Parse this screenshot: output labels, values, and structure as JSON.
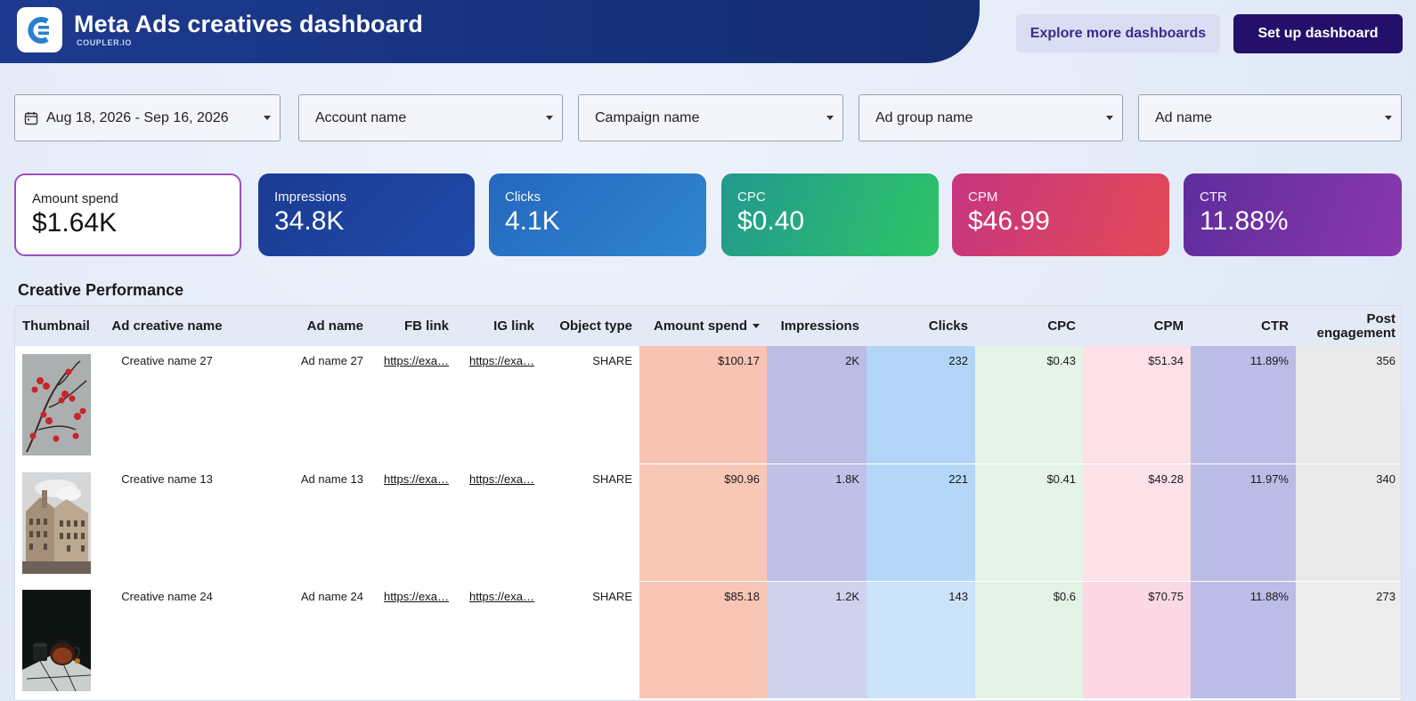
{
  "header": {
    "title": "Meta Ads creatives dashboard",
    "subtitle": "COUPLER.IO",
    "explore_label": "Explore more dashboards",
    "setup_label": "Set up dashboard",
    "brand_color": "#1d3a8f",
    "setup_button_color": "#24106a"
  },
  "filters": [
    {
      "label": "Aug 18, 2026 - Sep 16, 2026",
      "icon": "calendar-icon"
    },
    {
      "label": "Account name"
    },
    {
      "label": "Campaign name"
    },
    {
      "label": "Ad group name"
    },
    {
      "label": "Ad name"
    }
  ],
  "kpis": [
    {
      "label": "Amount spend",
      "value": "$1.64K",
      "color": "#ffffff"
    },
    {
      "label": "Impressions",
      "value": "34.8K",
      "color": "#1f3f9a"
    },
    {
      "label": "Clicks",
      "value": "4.1K",
      "color": "#2a78c7"
    },
    {
      "label": "CPC",
      "value": "$0.40",
      "color": "#2db46a"
    },
    {
      "label": "CPM",
      "value": "$46.99",
      "color": "#d8385f"
    },
    {
      "label": "CTR",
      "value": "11.88%",
      "color": "#7b33a8"
    }
  ],
  "table": {
    "title": "Creative Performance",
    "columns": [
      "Thumbnail",
      "Ad creative name",
      "Ad name",
      "FB link",
      "IG link",
      "Object type",
      "Amount spend",
      "Impressions",
      "Clicks",
      "CPC",
      "CPM",
      "CTR",
      "Post engagement"
    ],
    "rows": [
      {
        "thumb": "berries-photo",
        "creative": "Creative name 27",
        "ad": "Ad name 27",
        "fb": "https://exa…",
        "ig": "https://exa…",
        "type": "SHARE",
        "spend": "$100.17",
        "impressions": "2K",
        "clicks": "232",
        "cpc": "$0.43",
        "cpm": "$51.34",
        "ctr": "11.89%",
        "engagement": "356"
      },
      {
        "thumb": "building-photo",
        "creative": "Creative name 13",
        "ad": "Ad name 13",
        "fb": "https://exa…",
        "ig": "https://exa…",
        "type": "SHARE",
        "spend": "$90.96",
        "impressions": "1.8K",
        "clicks": "221",
        "cpc": "$0.41",
        "cpm": "$49.28",
        "ctr": "11.97%",
        "engagement": "340"
      },
      {
        "thumb": "teapot-photo",
        "creative": "Creative name 24",
        "ad": "Ad name 24",
        "fb": "https://exa…",
        "ig": "https://exa…",
        "type": "SHARE",
        "spend": "$85.18",
        "impressions": "1.2K",
        "clicks": "143",
        "cpc": "$0.6",
        "cpm": "$70.75",
        "ctr": "11.88%",
        "engagement": "273"
      }
    ]
  }
}
